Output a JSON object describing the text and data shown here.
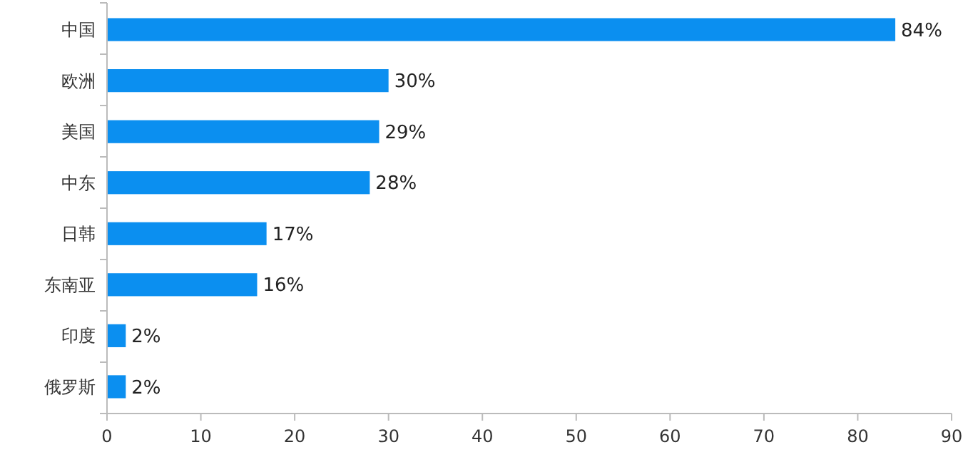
{
  "chart_data": {
    "type": "bar",
    "orientation": "horizontal",
    "categories": [
      "中国",
      "欧洲",
      "美国",
      "中东",
      "日韩",
      "东南亚",
      "印度",
      "俄罗斯"
    ],
    "values": [
      84,
      30,
      29,
      28,
      17,
      16,
      2,
      2
    ],
    "value_labels": [
      "84%",
      "30%",
      "29%",
      "28%",
      "17%",
      "16%",
      "2%",
      "2%"
    ],
    "color": "#0b8ff0",
    "xlim": [
      0,
      90
    ],
    "xticks": [
      0,
      10,
      20,
      30,
      40,
      50,
      60,
      70,
      80,
      90
    ],
    "grid": false
  }
}
